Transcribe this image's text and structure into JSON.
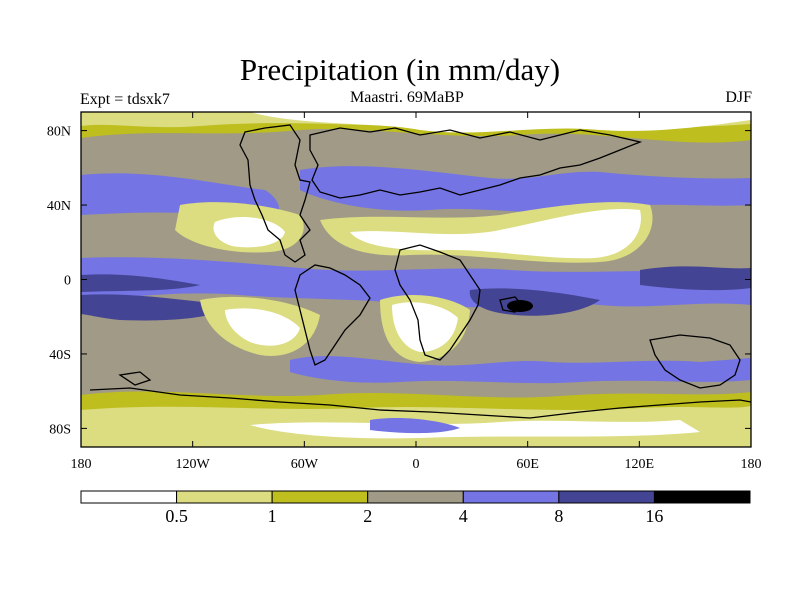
{
  "title": "Precipitation (in mm/day)",
  "experiment": "Expt = tdsxk7",
  "subtitle": "Maastri.  69MaBP",
  "season": "DJF",
  "chart_data": {
    "type": "heatmap",
    "variable": "Precipitation",
    "units": "mm/day",
    "x_axis": {
      "range": [
        -180,
        180
      ],
      "ticks": [
        -180,
        -120,
        -60,
        0,
        60,
        120,
        180
      ],
      "tick_labels": [
        "180",
        "120W",
        "60W",
        "0",
        "60E",
        "120E",
        "180"
      ]
    },
    "y_axis": {
      "range": [
        -90,
        90
      ],
      "ticks": [
        80,
        40,
        0,
        -40,
        -80
      ],
      "tick_labels": [
        "80N",
        "40N",
        "0",
        "40S",
        "80S"
      ]
    },
    "colorbar": {
      "levels": [
        0.5,
        1,
        2,
        4,
        8,
        16
      ],
      "level_labels": [
        "0.5",
        "1",
        "2",
        "4",
        "8",
        "16"
      ],
      "colors": [
        "#ffffff",
        "#dcdc80",
        "#bebe1e",
        "#a09a86",
        "#7474e4",
        "#444494",
        "#000000"
      ]
    }
  }
}
